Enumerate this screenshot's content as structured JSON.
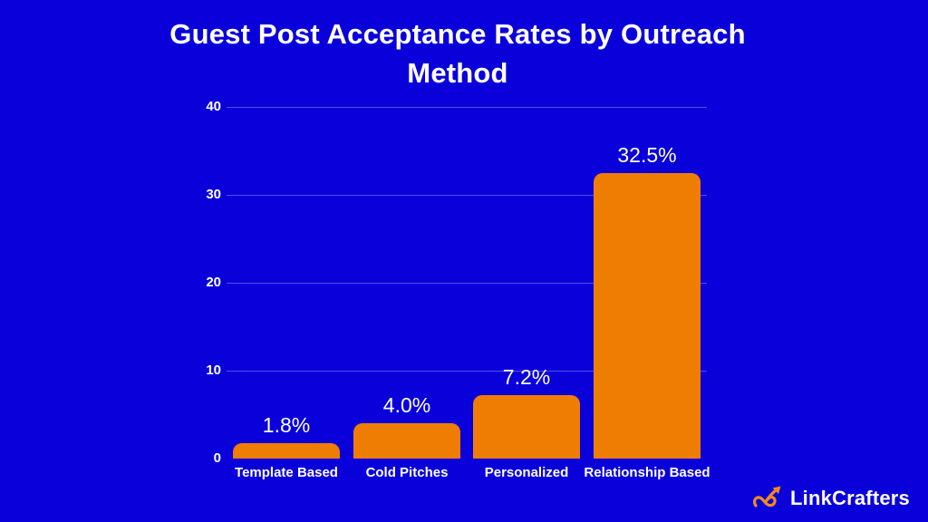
{
  "title": "Guest Post Acceptance Rates by Outreach Method",
  "chart_data": {
    "type": "bar",
    "title": "Guest Post Acceptance Rates by Outreach Method",
    "categories": [
      "Template Based",
      "Cold Pitches",
      "Personalized",
      "Relationship Based"
    ],
    "values": [
      1.8,
      4.0,
      7.2,
      32.5
    ],
    "value_labels": [
      "1.8%",
      "4.0%",
      "7.2%",
      "32.5%"
    ],
    "xlabel": "",
    "ylabel": "",
    "ylim": [
      0,
      40
    ],
    "yticks": [
      0,
      10,
      20,
      30,
      40
    ],
    "ytick_labels": [
      "0",
      "10",
      "20",
      "30",
      "40"
    ],
    "grid": "horizontal gridlines at 10,20,30,40; no vertical gridlines; no legend",
    "legend": "none"
  },
  "colors": {
    "background": "#0A00DA",
    "bar": "#EF7D04",
    "text": "#FFFFFF",
    "gridline": "rgba(255,255,255,0.30)",
    "logo_orange": "#F08A1E"
  },
  "branding": {
    "logo_text": "LinkCrafters",
    "logo_icon": "infinity-arrow-icon"
  }
}
